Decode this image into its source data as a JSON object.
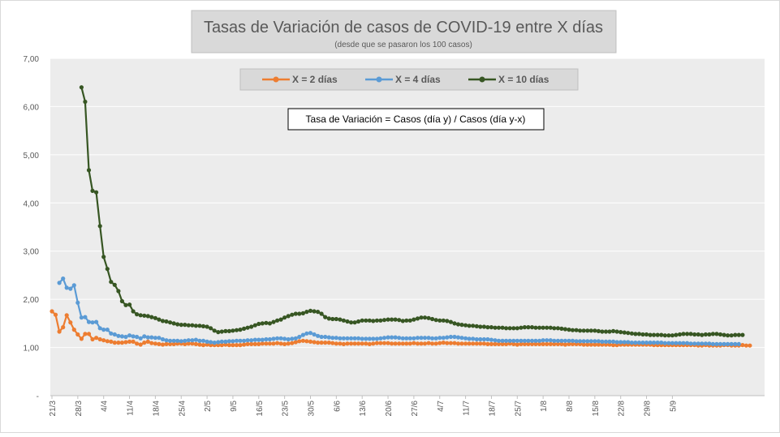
{
  "chart_data": {
    "type": "line",
    "title": "Tasas de Variación de casos de COVID-19 entre X días",
    "subtitle": "(desde que se pasaron los 100 casos)",
    "annotation": "Tasa de Variación = Casos (día y) / Casos (día y-x)",
    "xlabel": "",
    "ylabel": "",
    "ylim": [
      0,
      7
    ],
    "y_ticks": [
      "-",
      "1,00",
      "2,00",
      "3,00",
      "4,00",
      "5,00",
      "6,00",
      "7,00"
    ],
    "x_ticks": [
      "21/3",
      "28/3",
      "4/4",
      "11/4",
      "18/4",
      "25/4",
      "2/5",
      "9/5",
      "16/5",
      "23/5",
      "30/5",
      "6/6",
      "13/6",
      "20/6",
      "27/6",
      "4/7",
      "11/7",
      "18/7",
      "25/7",
      "1/8",
      "8/8",
      "15/8",
      "22/8",
      "29/8",
      "5/9"
    ],
    "grid": true,
    "legend_position": "top",
    "x_start": "21/3",
    "x_step_days": 1,
    "series": [
      {
        "name": "X = 2 días",
        "color": "#ed7d31",
        "start_offset": 0,
        "values": [
          1.75,
          1.68,
          1.33,
          1.42,
          1.67,
          1.52,
          1.37,
          1.27,
          1.18,
          1.28,
          1.28,
          1.17,
          1.2,
          1.17,
          1.15,
          1.13,
          1.12,
          1.1,
          1.1,
          1.1,
          1.11,
          1.12,
          1.12,
          1.08,
          1.06,
          1.1,
          1.12,
          1.09,
          1.08,
          1.07,
          1.06,
          1.07,
          1.07,
          1.07,
          1.08,
          1.08,
          1.07,
          1.08,
          1.08,
          1.07,
          1.06,
          1.05,
          1.06,
          1.05,
          1.05,
          1.05,
          1.05,
          1.06,
          1.05,
          1.05,
          1.05,
          1.05,
          1.06,
          1.07,
          1.07,
          1.07,
          1.07,
          1.08,
          1.08,
          1.08,
          1.08,
          1.09,
          1.08,
          1.07,
          1.08,
          1.09,
          1.11,
          1.13,
          1.14,
          1.13,
          1.12,
          1.11,
          1.1,
          1.1,
          1.1,
          1.1,
          1.09,
          1.08,
          1.08,
          1.07,
          1.08,
          1.08,
          1.08,
          1.08,
          1.08,
          1.08,
          1.07,
          1.08,
          1.09,
          1.09,
          1.09,
          1.09,
          1.08,
          1.08,
          1.08,
          1.08,
          1.08,
          1.08,
          1.09,
          1.08,
          1.08,
          1.08,
          1.09,
          1.08,
          1.08,
          1.09,
          1.1,
          1.09,
          1.09,
          1.09,
          1.08,
          1.08,
          1.08,
          1.08,
          1.08,
          1.08,
          1.08,
          1.08,
          1.07,
          1.07,
          1.07,
          1.07,
          1.07,
          1.07,
          1.08,
          1.07,
          1.06,
          1.07,
          1.07,
          1.07,
          1.07,
          1.07,
          1.07,
          1.07,
          1.07,
          1.07,
          1.07,
          1.07,
          1.07,
          1.06,
          1.07,
          1.07,
          1.07,
          1.07,
          1.06,
          1.06,
          1.06,
          1.06,
          1.06,
          1.06,
          1.06,
          1.06,
          1.05,
          1.05,
          1.06,
          1.06,
          1.06,
          1.06,
          1.06,
          1.06,
          1.06,
          1.06,
          1.06,
          1.05,
          1.05,
          1.05,
          1.05,
          1.05,
          1.05,
          1.05,
          1.05,
          1.05,
          1.05,
          1.05,
          1.05,
          1.04,
          1.04,
          1.05,
          1.04,
          1.04,
          1.04,
          1.04,
          1.05,
          1.05,
          1.04,
          1.04,
          1.04,
          1.05,
          1.04,
          1.04
        ]
      },
      {
        "name": "X = 4 días",
        "color": "#5b9bd5",
        "start_offset": 2,
        "values": [
          2.34,
          2.43,
          2.24,
          2.22,
          2.29,
          1.93,
          1.62,
          1.63,
          1.53,
          1.52,
          1.53,
          1.4,
          1.37,
          1.37,
          1.29,
          1.27,
          1.24,
          1.23,
          1.22,
          1.25,
          1.23,
          1.22,
          1.19,
          1.23,
          1.21,
          1.21,
          1.2,
          1.2,
          1.17,
          1.15,
          1.14,
          1.14,
          1.14,
          1.13,
          1.14,
          1.15,
          1.15,
          1.16,
          1.14,
          1.14,
          1.12,
          1.11,
          1.1,
          1.11,
          1.12,
          1.12,
          1.13,
          1.13,
          1.14,
          1.14,
          1.14,
          1.15,
          1.15,
          1.16,
          1.16,
          1.16,
          1.17,
          1.17,
          1.18,
          1.19,
          1.19,
          1.18,
          1.17,
          1.18,
          1.19,
          1.22,
          1.26,
          1.29,
          1.3,
          1.27,
          1.24,
          1.22,
          1.22,
          1.21,
          1.2,
          1.2,
          1.19,
          1.19,
          1.19,
          1.19,
          1.19,
          1.19,
          1.18,
          1.18,
          1.18,
          1.18,
          1.18,
          1.19,
          1.2,
          1.21,
          1.21,
          1.21,
          1.2,
          1.19,
          1.19,
          1.19,
          1.19,
          1.2,
          1.2,
          1.2,
          1.2,
          1.19,
          1.19,
          1.2,
          1.2,
          1.21,
          1.22,
          1.22,
          1.21,
          1.2,
          1.19,
          1.18,
          1.18,
          1.17,
          1.17,
          1.17,
          1.17,
          1.16,
          1.15,
          1.14,
          1.14,
          1.14,
          1.14,
          1.14,
          1.14,
          1.14,
          1.14,
          1.14,
          1.14,
          1.14,
          1.14,
          1.15,
          1.15,
          1.15,
          1.14,
          1.14,
          1.14,
          1.14,
          1.14,
          1.14,
          1.13,
          1.13,
          1.13,
          1.13,
          1.13,
          1.13,
          1.13,
          1.12,
          1.12,
          1.12,
          1.12,
          1.11,
          1.11,
          1.11,
          1.11,
          1.1,
          1.1,
          1.1,
          1.1,
          1.1,
          1.1,
          1.1,
          1.1,
          1.1,
          1.09,
          1.09,
          1.09,
          1.09,
          1.09,
          1.09,
          1.09,
          1.08,
          1.08,
          1.08,
          1.08,
          1.08,
          1.08,
          1.07,
          1.07,
          1.07,
          1.07,
          1.07,
          1.07,
          1.07,
          1.07
        ]
      },
      {
        "name": "X = 10 días",
        "color": "#375623",
        "start_offset": 8,
        "values": [
          6.4,
          6.1,
          4.68,
          4.25,
          4.22,
          3.52,
          2.88,
          2.63,
          2.36,
          2.3,
          2.17,
          1.96,
          1.88,
          1.89,
          1.75,
          1.69,
          1.67,
          1.66,
          1.65,
          1.63,
          1.61,
          1.58,
          1.55,
          1.54,
          1.52,
          1.5,
          1.48,
          1.47,
          1.47,
          1.46,
          1.46,
          1.45,
          1.45,
          1.44,
          1.43,
          1.4,
          1.35,
          1.32,
          1.33,
          1.34,
          1.34,
          1.35,
          1.36,
          1.37,
          1.39,
          1.41,
          1.43,
          1.46,
          1.49,
          1.5,
          1.51,
          1.5,
          1.53,
          1.56,
          1.58,
          1.62,
          1.65,
          1.68,
          1.7,
          1.7,
          1.71,
          1.74,
          1.76,
          1.75,
          1.74,
          1.7,
          1.63,
          1.6,
          1.59,
          1.59,
          1.58,
          1.56,
          1.54,
          1.52,
          1.52,
          1.54,
          1.56,
          1.56,
          1.56,
          1.55,
          1.56,
          1.56,
          1.57,
          1.58,
          1.58,
          1.58,
          1.57,
          1.55,
          1.56,
          1.56,
          1.58,
          1.6,
          1.62,
          1.62,
          1.61,
          1.59,
          1.57,
          1.56,
          1.56,
          1.55,
          1.53,
          1.5,
          1.48,
          1.47,
          1.46,
          1.45,
          1.45,
          1.44,
          1.43,
          1.43,
          1.42,
          1.42,
          1.41,
          1.41,
          1.41,
          1.4,
          1.4,
          1.4,
          1.4,
          1.41,
          1.42,
          1.42,
          1.42,
          1.41,
          1.41,
          1.41,
          1.41,
          1.41,
          1.4,
          1.4,
          1.39,
          1.38,
          1.37,
          1.36,
          1.36,
          1.35,
          1.35,
          1.35,
          1.35,
          1.35,
          1.34,
          1.33,
          1.33,
          1.33,
          1.34,
          1.33,
          1.32,
          1.31,
          1.3,
          1.29,
          1.28,
          1.28,
          1.27,
          1.27,
          1.26,
          1.26,
          1.26,
          1.26,
          1.25,
          1.25,
          1.25,
          1.26,
          1.27,
          1.28,
          1.28,
          1.28,
          1.27,
          1.27,
          1.26,
          1.27,
          1.27,
          1.28,
          1.28,
          1.27,
          1.26,
          1.25,
          1.25,
          1.26,
          1.26,
          1.26
        ]
      }
    ]
  }
}
